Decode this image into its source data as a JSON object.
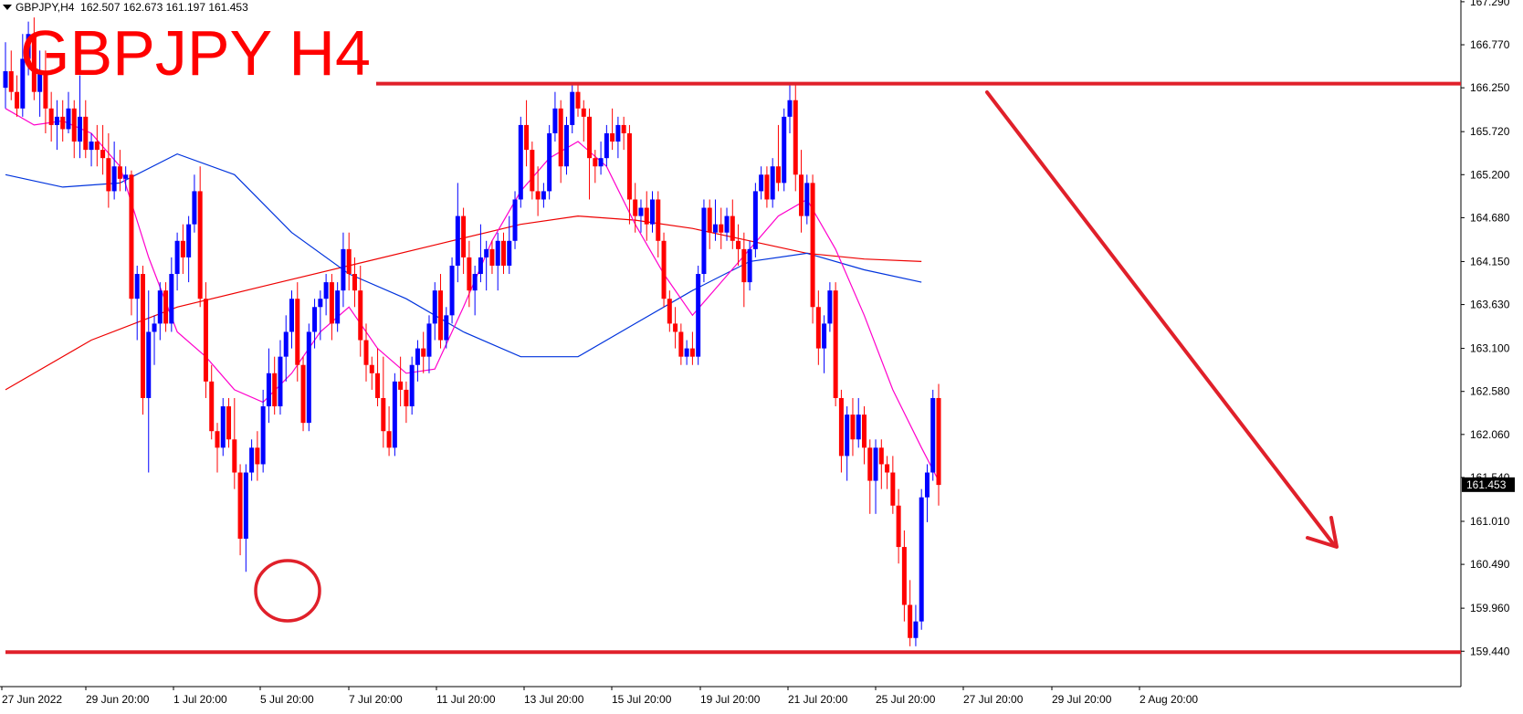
{
  "header": {
    "symbol": "GBPJPY,H4",
    "open": "162.507",
    "high": "162.673",
    "low": "161.197",
    "close": "161.453"
  },
  "annotation_title": "GBPJPY H4",
  "colors": {
    "bull": "#0000ff",
    "bear": "#ff0000",
    "ma_fast": "#ff00cc",
    "ma_mid": "#0033dd",
    "ma_slow": "#ee0000",
    "drawing": "#e0202a"
  },
  "chart_data": {
    "type": "candlestick",
    "title": "GBPJPY H4",
    "ylim": [
      159.2,
      167.3
    ],
    "y_ticks": [
      "167.290",
      "166.770",
      "166.250",
      "165.720",
      "165.200",
      "164.680",
      "164.150",
      "163.630",
      "163.100",
      "162.580",
      "162.060",
      "161.540",
      "161.010",
      "160.490",
      "159.960",
      "159.440"
    ],
    "x_ticks": [
      "27 Jun 2022",
      "29 Jun 20:00",
      "1 Jul 20:00",
      "5 Jul 20:00",
      "7 Jul 20:00",
      "11 Jul 20:00",
      "13 Jul 20:00",
      "15 Jul 20:00",
      "19 Jul 20:00",
      "21 Jul 20:00",
      "25 Jul 20:00",
      "27 Jul 20:00",
      "29 Jul 20:00",
      "2 Aug 20:00"
    ],
    "current_price": "161.453",
    "resistance": 166.3,
    "support": 159.44,
    "candles": [
      [
        166.25,
        166.8,
        166.0,
        166.45
      ],
      [
        166.45,
        166.7,
        166.1,
        166.2
      ],
      [
        166.2,
        166.4,
        165.9,
        166.0
      ],
      [
        166.0,
        166.9,
        165.9,
        166.6
      ],
      [
        166.6,
        167.05,
        166.4,
        166.9
      ],
      [
        166.9,
        167.1,
        166.1,
        166.2
      ],
      [
        166.2,
        166.7,
        165.9,
        166.45
      ],
      [
        166.45,
        166.7,
        165.7,
        166.0
      ],
      [
        166.0,
        166.2,
        165.6,
        165.8
      ],
      [
        165.8,
        166.1,
        165.5,
        165.9
      ],
      [
        165.9,
        166.1,
        165.6,
        165.75
      ],
      [
        165.75,
        166.2,
        165.7,
        166.0
      ],
      [
        166.0,
        166.1,
        165.4,
        165.6
      ],
      [
        165.6,
        166.4,
        165.4,
        165.9
      ],
      [
        165.9,
        166.1,
        165.4,
        165.5
      ],
      [
        165.5,
        165.7,
        165.3,
        165.6
      ],
      [
        165.6,
        165.8,
        165.3,
        165.5
      ],
      [
        165.5,
        165.8,
        165.2,
        165.4
      ],
      [
        165.4,
        165.7,
        164.8,
        165.0
      ],
      [
        165.0,
        165.6,
        164.9,
        165.3
      ],
      [
        165.3,
        165.5,
        165.0,
        165.15
      ],
      [
        165.15,
        165.3,
        165.0,
        165.2
      ],
      [
        165.2,
        165.25,
        163.5,
        163.7
      ],
      [
        163.7,
        164.1,
        163.2,
        164.0
      ],
      [
        164.0,
        164.1,
        162.3,
        162.5
      ],
      [
        162.5,
        163.8,
        161.6,
        163.3
      ],
      [
        163.3,
        163.5,
        162.9,
        163.4
      ],
      [
        163.4,
        163.9,
        163.2,
        163.8
      ],
      [
        163.8,
        163.9,
        163.3,
        163.4
      ],
      [
        163.4,
        164.2,
        163.3,
        164.0
      ],
      [
        164.0,
        164.5,
        163.8,
        164.4
      ],
      [
        164.4,
        164.6,
        164.0,
        164.2
      ],
      [
        164.2,
        164.7,
        163.9,
        164.6
      ],
      [
        164.6,
        165.2,
        164.5,
        165.0
      ],
      [
        165.0,
        165.3,
        163.6,
        163.7
      ],
      [
        163.7,
        163.9,
        162.5,
        162.7
      ],
      [
        162.7,
        162.9,
        162.0,
        162.1
      ],
      [
        162.1,
        162.2,
        161.6,
        161.9
      ],
      [
        161.9,
        162.5,
        161.8,
        162.4
      ],
      [
        162.4,
        162.5,
        161.9,
        162.0
      ],
      [
        162.0,
        162.5,
        161.4,
        161.6
      ],
      [
        161.6,
        161.7,
        160.6,
        160.8
      ],
      [
        160.8,
        161.7,
        160.4,
        161.6
      ],
      [
        161.6,
        162.0,
        161.5,
        161.9
      ],
      [
        161.9,
        162.1,
        161.5,
        161.7
      ],
      [
        161.7,
        162.6,
        161.6,
        162.4
      ],
      [
        162.4,
        163.1,
        162.2,
        162.8
      ],
      [
        162.8,
        163.0,
        162.3,
        162.4
      ],
      [
        162.4,
        163.2,
        162.3,
        163.0
      ],
      [
        163.0,
        163.5,
        162.7,
        163.3
      ],
      [
        163.3,
        163.8,
        163.1,
        163.7
      ],
      [
        163.7,
        163.9,
        162.7,
        162.9
      ],
      [
        162.9,
        163.0,
        162.1,
        162.2
      ],
      [
        162.2,
        163.4,
        162.1,
        163.3
      ],
      [
        163.3,
        163.7,
        163.1,
        163.6
      ],
      [
        163.6,
        163.8,
        163.2,
        163.7
      ],
      [
        163.7,
        164.0,
        163.5,
        163.9
      ],
      [
        163.9,
        164.0,
        163.2,
        163.4
      ],
      [
        163.4,
        163.9,
        163.3,
        163.8
      ],
      [
        163.8,
        164.5,
        163.6,
        164.3
      ],
      [
        164.3,
        164.5,
        163.8,
        164.0
      ],
      [
        164.0,
        164.2,
        163.6,
        163.8
      ],
      [
        163.8,
        164.1,
        163.0,
        163.2
      ],
      [
        163.2,
        163.4,
        162.7,
        162.9
      ],
      [
        162.9,
        163.0,
        162.6,
        162.8
      ],
      [
        162.8,
        163.1,
        162.4,
        162.5
      ],
      [
        162.5,
        163.0,
        161.9,
        162.1
      ],
      [
        162.1,
        162.4,
        161.8,
        161.9
      ],
      [
        161.9,
        162.8,
        161.8,
        162.7
      ],
      [
        162.7,
        163.0,
        162.4,
        162.6
      ],
      [
        162.6,
        162.7,
        162.2,
        162.4
      ],
      [
        162.4,
        163.0,
        162.3,
        162.9
      ],
      [
        162.9,
        163.2,
        162.7,
        163.1
      ],
      [
        163.1,
        163.3,
        162.8,
        163.0
      ],
      [
        163.0,
        163.5,
        162.8,
        163.4
      ],
      [
        163.4,
        163.9,
        163.2,
        163.8
      ],
      [
        163.8,
        164.0,
        163.1,
        163.2
      ],
      [
        163.2,
        163.6,
        163.1,
        163.5
      ],
      [
        163.5,
        164.2,
        163.4,
        164.1
      ],
      [
        164.1,
        165.1,
        163.9,
        164.7
      ],
      [
        164.7,
        164.8,
        164.0,
        164.2
      ],
      [
        164.2,
        164.4,
        163.6,
        163.8
      ],
      [
        163.8,
        164.1,
        163.5,
        164.0
      ],
      [
        164.0,
        164.6,
        163.9,
        164.2
      ],
      [
        164.2,
        164.4,
        163.8,
        164.3
      ],
      [
        164.3,
        164.4,
        164.0,
        164.1
      ],
      [
        164.1,
        164.5,
        163.8,
        164.4
      ],
      [
        164.4,
        164.5,
        164.0,
        164.1
      ],
      [
        164.1,
        164.7,
        164.0,
        164.4
      ],
      [
        164.4,
        165.0,
        164.3,
        164.9
      ],
      [
        164.9,
        165.9,
        164.8,
        165.8
      ],
      [
        165.8,
        166.1,
        165.3,
        165.5
      ],
      [
        165.5,
        165.6,
        164.9,
        165.0
      ],
      [
        165.0,
        165.3,
        164.7,
        164.9
      ],
      [
        164.9,
        165.1,
        164.8,
        165.0
      ],
      [
        165.0,
        165.8,
        164.9,
        165.7
      ],
      [
        165.7,
        166.2,
        165.6,
        166.0
      ],
      [
        166.0,
        166.1,
        165.1,
        165.3
      ],
      [
        165.3,
        165.9,
        165.2,
        165.8
      ],
      [
        165.8,
        166.3,
        165.7,
        166.2
      ],
      [
        166.2,
        166.3,
        165.9,
        166.0
      ],
      [
        166.0,
        166.1,
        165.6,
        165.9
      ],
      [
        165.9,
        166.0,
        164.9,
        165.4
      ],
      [
        165.4,
        165.5,
        165.1,
        165.3
      ],
      [
        165.3,
        165.6,
        165.2,
        165.4
      ],
      [
        165.4,
        165.8,
        165.3,
        165.7
      ],
      [
        165.7,
        166.0,
        165.5,
        165.6
      ],
      [
        165.6,
        165.9,
        165.4,
        165.8
      ],
      [
        165.8,
        165.9,
        165.5,
        165.7
      ],
      [
        165.7,
        165.8,
        164.6,
        164.9
      ],
      [
        164.9,
        165.1,
        164.5,
        164.7
      ],
      [
        164.7,
        164.9,
        164.5,
        164.8
      ],
      [
        164.8,
        165.0,
        164.4,
        164.6
      ],
      [
        164.6,
        165.0,
        164.5,
        164.9
      ],
      [
        164.9,
        165.0,
        164.2,
        164.4
      ],
      [
        164.4,
        164.5,
        163.6,
        163.7
      ],
      [
        163.7,
        163.8,
        163.3,
        163.4
      ],
      [
        163.4,
        163.6,
        163.1,
        163.3
      ],
      [
        163.3,
        163.4,
        162.9,
        163.0
      ],
      [
        163.0,
        163.2,
        162.9,
        163.1
      ],
      [
        163.1,
        163.3,
        162.9,
        163.0
      ],
      [
        163.0,
        164.1,
        162.9,
        164.0
      ],
      [
        164.0,
        164.9,
        163.9,
        164.8
      ],
      [
        164.8,
        164.9,
        164.3,
        164.5
      ],
      [
        164.5,
        164.9,
        164.4,
        164.6
      ],
      [
        164.6,
        164.8,
        164.3,
        164.5
      ],
      [
        164.5,
        164.8,
        164.4,
        164.7
      ],
      [
        164.7,
        164.9,
        164.3,
        164.4
      ],
      [
        164.4,
        164.6,
        164.1,
        164.3
      ],
      [
        164.3,
        164.5,
        163.6,
        163.9
      ],
      [
        163.9,
        164.4,
        163.8,
        164.3
      ],
      [
        164.3,
        165.1,
        164.2,
        165.0
      ],
      [
        165.0,
        165.3,
        164.9,
        165.2
      ],
      [
        165.2,
        165.3,
        164.8,
        164.9
      ],
      [
        164.9,
        165.4,
        164.8,
        165.3
      ],
      [
        165.3,
        165.8,
        165.0,
        165.1
      ],
      [
        165.1,
        166.0,
        165.0,
        165.9
      ],
      [
        165.9,
        166.3,
        165.7,
        166.1
      ],
      [
        166.1,
        166.3,
        165.0,
        165.2
      ],
      [
        165.2,
        165.5,
        164.5,
        164.7
      ],
      [
        164.7,
        165.2,
        164.6,
        165.1
      ],
      [
        165.1,
        165.2,
        163.4,
        163.6
      ],
      [
        163.6,
        163.8,
        162.9,
        163.1
      ],
      [
        163.1,
        163.5,
        162.8,
        163.4
      ],
      [
        163.4,
        163.9,
        163.3,
        163.8
      ],
      [
        163.8,
        163.9,
        162.4,
        162.5
      ],
      [
        162.5,
        162.6,
        161.6,
        161.8
      ],
      [
        161.8,
        162.4,
        161.5,
        162.3
      ],
      [
        162.3,
        162.5,
        161.8,
        162.0
      ],
      [
        162.0,
        162.5,
        161.9,
        162.3
      ],
      [
        162.3,
        162.4,
        161.7,
        161.9
      ],
      [
        161.9,
        162.0,
        161.1,
        161.5
      ],
      [
        161.5,
        162.0,
        161.1,
        161.9
      ],
      [
        161.9,
        162.0,
        161.4,
        161.7
      ],
      [
        161.7,
        161.8,
        161.4,
        161.6
      ],
      [
        161.6,
        161.8,
        161.1,
        161.2
      ],
      [
        161.2,
        161.4,
        160.5,
        160.7
      ],
      [
        160.7,
        160.9,
        159.8,
        160.0
      ],
      [
        160.0,
        160.3,
        159.5,
        159.6
      ],
      [
        159.6,
        160.0,
        159.5,
        159.8
      ],
      [
        159.8,
        161.4,
        159.7,
        161.3
      ],
      [
        161.3,
        161.7,
        161.0,
        161.6
      ],
      [
        161.6,
        162.6,
        161.5,
        162.5
      ],
      [
        162.5,
        162.67,
        161.2,
        161.45
      ]
    ],
    "ma_fast": [
      [
        0,
        166.0
      ],
      [
        5,
        165.8
      ],
      [
        10,
        165.85
      ],
      [
        15,
        165.7
      ],
      [
        20,
        165.3
      ],
      [
        25,
        164.2
      ],
      [
        30,
        163.3
      ],
      [
        35,
        163.0
      ],
      [
        40,
        162.6
      ],
      [
        45,
        162.45
      ],
      [
        50,
        162.8
      ],
      [
        55,
        163.3
      ],
      [
        60,
        163.6
      ],
      [
        65,
        163.1
      ],
      [
        70,
        162.8
      ],
      [
        75,
        162.85
      ],
      [
        80,
        163.6
      ],
      [
        85,
        164.4
      ],
      [
        90,
        165.0
      ],
      [
        95,
        165.4
      ],
      [
        100,
        165.6
      ],
      [
        105,
        165.3
      ],
      [
        110,
        164.6
      ],
      [
        115,
        164.0
      ],
      [
        120,
        163.5
      ],
      [
        125,
        163.9
      ],
      [
        130,
        164.3
      ],
      [
        135,
        164.7
      ],
      [
        140,
        164.9
      ],
      [
        145,
        164.3
      ],
      [
        150,
        163.5
      ],
      [
        155,
        162.6
      ],
      [
        160,
        161.9
      ],
      [
        163,
        161.5
      ]
    ],
    "ma_mid": [
      [
        0,
        165.2
      ],
      [
        10,
        165.05
      ],
      [
        20,
        165.1
      ],
      [
        30,
        165.45
      ],
      [
        40,
        165.2
      ],
      [
        50,
        164.5
      ],
      [
        60,
        164.0
      ],
      [
        70,
        163.7
      ],
      [
        80,
        163.3
      ],
      [
        90,
        163.0
      ],
      [
        100,
        163.0
      ],
      [
        110,
        163.4
      ],
      [
        120,
        163.8
      ],
      [
        130,
        164.15
      ],
      [
        140,
        164.25
      ],
      [
        150,
        164.05
      ],
      [
        160,
        163.9
      ]
    ],
    "ma_slow": [
      [
        0,
        162.6
      ],
      [
        15,
        163.2
      ],
      [
        30,
        163.6
      ],
      [
        45,
        163.85
      ],
      [
        60,
        164.1
      ],
      [
        75,
        164.35
      ],
      [
        90,
        164.6
      ],
      [
        100,
        164.7
      ],
      [
        110,
        164.65
      ],
      [
        120,
        164.55
      ],
      [
        130,
        164.4
      ],
      [
        140,
        164.25
      ],
      [
        150,
        164.18
      ],
      [
        160,
        164.15
      ]
    ]
  }
}
